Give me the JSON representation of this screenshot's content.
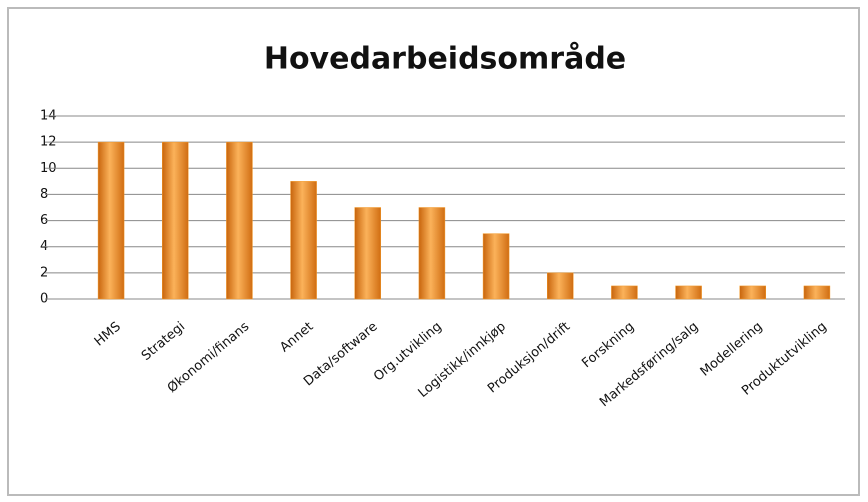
{
  "chart_data": {
    "type": "bar",
    "title": "Hovedarbeidsområde",
    "categories": [
      "HMS",
      "Strategi",
      "Økonomi/finans",
      "Annet",
      "Data/software",
      "Org.utvikling",
      "Logistikk/innkjøp",
      "Produksjon/drift",
      "Forskning",
      "Markedsføring/salg",
      "Modellering",
      "Produktutvikling"
    ],
    "values": [
      12,
      12,
      12,
      9,
      7,
      7,
      5,
      2,
      1,
      1,
      1,
      1
    ],
    "color": "#f39a2a",
    "ylim": [
      0,
      14
    ],
    "yticks": [
      0,
      2,
      4,
      6,
      8,
      10,
      12,
      14
    ],
    "grid": true
  }
}
